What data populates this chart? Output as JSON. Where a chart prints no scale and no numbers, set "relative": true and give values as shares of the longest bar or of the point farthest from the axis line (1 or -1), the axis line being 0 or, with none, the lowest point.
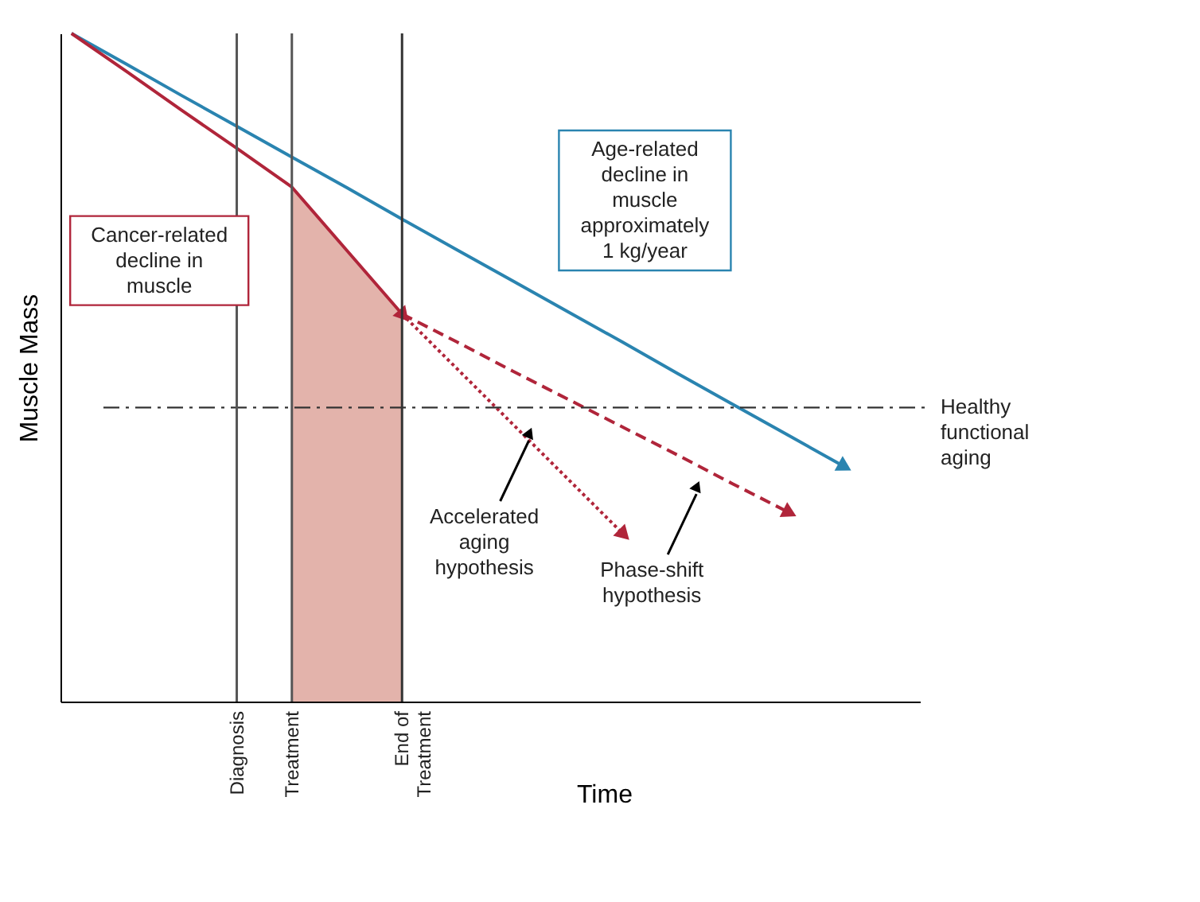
{
  "chart_data": {
    "type": "line",
    "relative": true,
    "xlabel": "Time",
    "ylabel": "Muscle Mass",
    "categories": [
      null,
      null,
      null,
      "Diagnosis",
      "Treatment",
      null,
      "End of Treatment",
      null,
      null,
      null,
      null,
      null,
      null,
      null,
      null,
      null
    ],
    "series": [
      {
        "type": "area",
        "color": "#e3b3ab",
        "values": [
          null,
          null,
          null,
          null,
          0.77,
          0.675,
          0.58,
          null,
          null,
          null,
          null,
          null,
          null,
          null,
          null,
          null
        ]
      },
      {
        "color": "#2a84b0",
        "line_style": "solid",
        "values": [
          1.0,
          0.954,
          0.907,
          0.861,
          0.815,
          0.769,
          0.722,
          0.676,
          0.63,
          0.584,
          0.538,
          0.491,
          0.445,
          0.399,
          0.353,
          null
        ]
      },
      {
        "color": "#b0253a",
        "line_style": "solid",
        "values": [
          1.0,
          0.943,
          0.885,
          0.828,
          0.77,
          0.675,
          0.58,
          null,
          null,
          null,
          null,
          null,
          null,
          null,
          null,
          null
        ]
      },
      {
        "color": "#b0253a",
        "line_style": "dashed",
        "values": [
          null,
          null,
          null,
          null,
          null,
          null,
          0.58,
          0.538,
          0.495,
          0.453,
          0.411,
          0.369,
          0.326,
          0.284,
          null,
          null
        ]
      },
      {
        "color": "#b0253a",
        "line_style": "dotted",
        "values": [
          null,
          null,
          null,
          null,
          null,
          null,
          0.58,
          0.498,
          0.416,
          0.334,
          0.252,
          null,
          null,
          null,
          null,
          null
        ]
      }
    ],
    "ref_lines": [
      {
        "axis": "y",
        "value": 0.44,
        "label": "Healthy functional aging",
        "color": "#333333",
        "line_style": "dashed"
      },
      {
        "axis": "x",
        "value": "Diagnosis",
        "color": "#555555",
        "line_style": "solid"
      },
      {
        "axis": "x",
        "value": "Treatment",
        "color": "#555555",
        "line_style": "solid"
      },
      {
        "axis": "x",
        "value": "End of Treatment",
        "color": "#333333",
        "line_style": "solid"
      }
    ],
    "annotations": [
      "Cancer-related decline in muscle",
      "Age-related decline in muscle approximately 1 kg/year",
      "Accelerated aging hypothesis",
      "Phase-shift hypothesis"
    ]
  }
}
